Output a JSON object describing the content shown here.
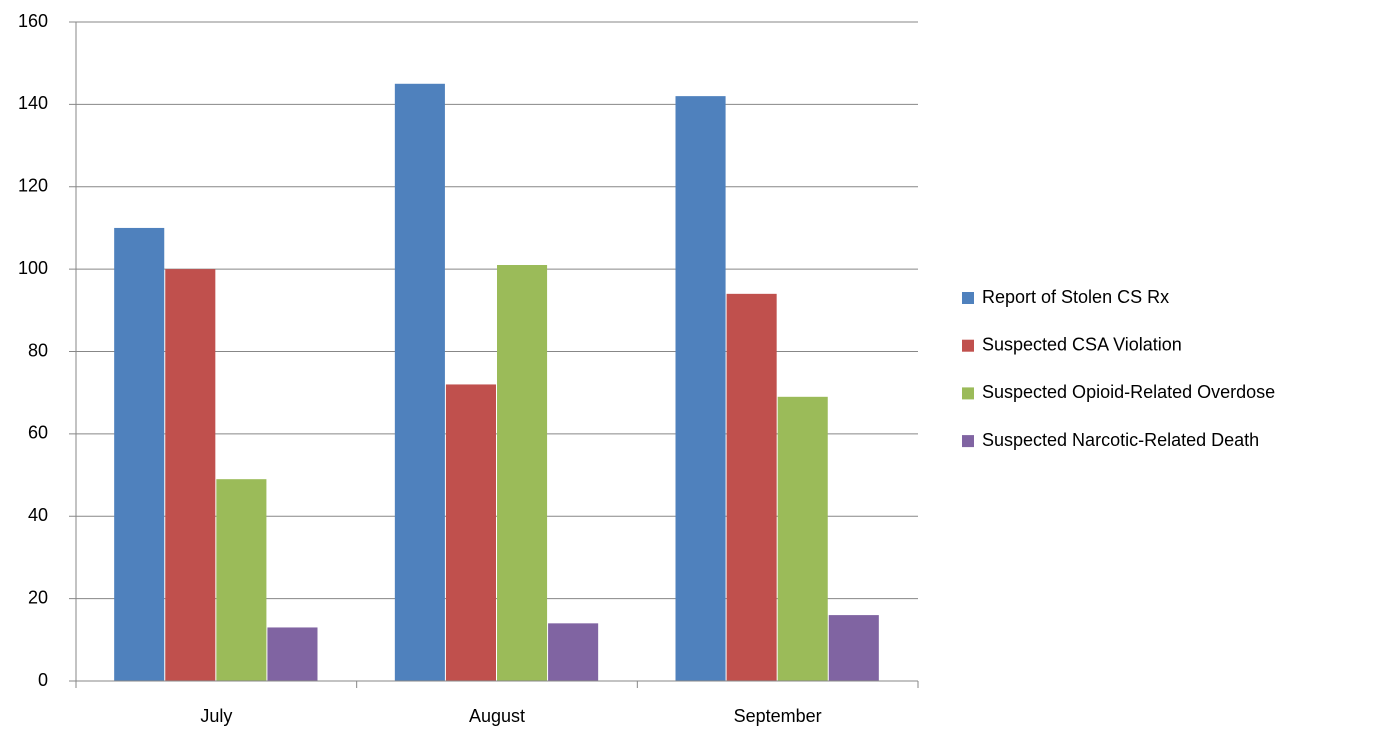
{
  "chart_data": {
    "type": "bar",
    "categories": [
      "July",
      "August",
      "September"
    ],
    "series": [
      {
        "name": "Report of Stolen CS Rx",
        "color": "#4f81bd",
        "values": [
          110,
          145,
          142
        ]
      },
      {
        "name": "Suspected CSA Violation",
        "color": "#c0504d",
        "values": [
          100,
          72,
          94
        ]
      },
      {
        "name": "Suspected Opioid-Related Overdose",
        "color": "#9bbb59",
        "values": [
          49,
          101,
          69
        ]
      },
      {
        "name": "Suspected Narcotic-Related Death",
        "color": "#8064a2",
        "values": [
          13,
          14,
          16
        ]
      }
    ],
    "ylim": [
      0,
      160
    ],
    "yticks": [
      0,
      20,
      40,
      60,
      80,
      100,
      120,
      140,
      160
    ],
    "grid": true,
    "legend": "right"
  }
}
